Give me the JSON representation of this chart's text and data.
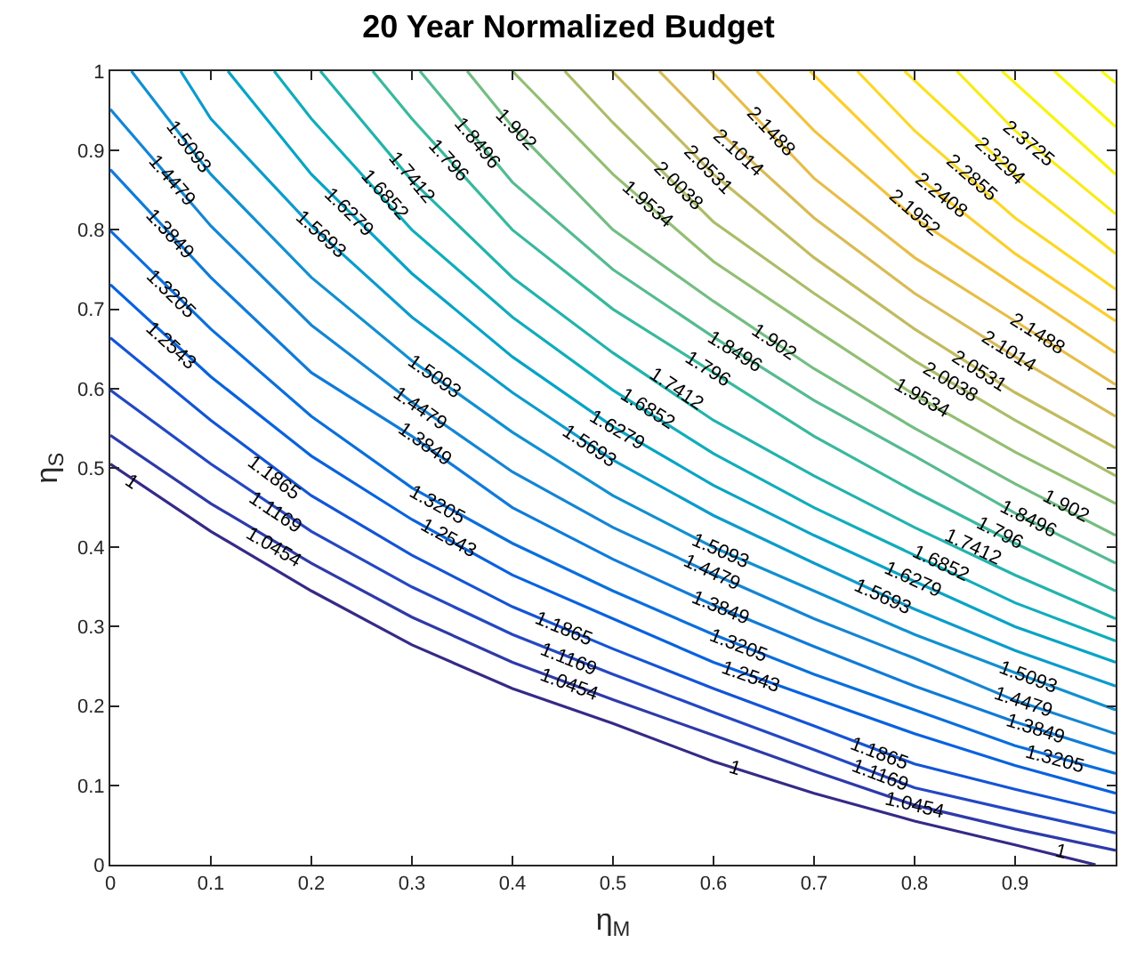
{
  "chart_data": {
    "type": "line",
    "title": "20 Year Normalized Budget",
    "xlabel": "η$_{M}$",
    "ylabel": "η$_{S}$",
    "xlim": [
      0,
      1
    ],
    "xticks": [
      0,
      0.1,
      0.2,
      0.3,
      0.4,
      0.5,
      0.6,
      0.7,
      0.8,
      0.9
    ],
    "ylim": [
      0,
      1
    ],
    "yticks": [
      0,
      0.1,
      0.2,
      0.3,
      0.4,
      0.5,
      0.6,
      0.7,
      0.8,
      0.9,
      1
    ],
    "grid": false,
    "series": [
      {
        "color": "#352a87",
        "x": [
          0,
          0.1,
          0.2,
          0.3,
          0.4,
          0.5,
          0.6,
          0.7,
          0.8,
          0.9,
          0.98
        ],
        "values": [
          0.505,
          0.42,
          0.345,
          0.277,
          0.222,
          0.178,
          0.13,
          0.09,
          0.055,
          0.025,
          0
        ]
      },
      {
        "color": "#2e3aa8",
        "x": [
          0,
          0.1,
          0.2,
          0.3,
          0.4,
          0.5,
          0.6,
          0.7,
          0.8,
          0.9,
          1
        ],
        "values": [
          0.541,
          0.455,
          0.38,
          0.312,
          0.255,
          0.208,
          0.163,
          0.118,
          0.075,
          0.045,
          0.018
        ]
      },
      {
        "color": "#2447c3",
        "x": [
          0,
          0.1,
          0.2,
          0.3,
          0.4,
          0.5,
          0.6,
          0.7,
          0.8,
          0.9,
          1
        ],
        "values": [
          0.598,
          0.505,
          0.42,
          0.35,
          0.29,
          0.24,
          0.192,
          0.145,
          0.097,
          0.068,
          0.04
        ]
      },
      {
        "color": "#1454d6",
        "x": [
          0,
          0.1,
          0.2,
          0.3,
          0.4,
          0.5,
          0.6,
          0.7,
          0.8,
          0.9,
          1
        ],
        "values": [
          0.664,
          0.56,
          0.465,
          0.39,
          0.325,
          0.272,
          0.222,
          0.175,
          0.127,
          0.095,
          0.065
        ]
      },
      {
        "color": "#0862df",
        "x": [
          0,
          0.1,
          0.2,
          0.3,
          0.4,
          0.5,
          0.6,
          0.7,
          0.8,
          0.9,
          1
        ],
        "values": [
          0.731,
          0.615,
          0.515,
          0.435,
          0.365,
          0.31,
          0.255,
          0.21,
          0.165,
          0.125,
          0.09
        ]
      },
      {
        "color": "#0a6fdc",
        "x": [
          0,
          0.1,
          0.2,
          0.3,
          0.4,
          0.5,
          0.6,
          0.7,
          0.8,
          0.9,
          1
        ],
        "values": [
          0.799,
          0.675,
          0.565,
          0.475,
          0.405,
          0.345,
          0.29,
          0.24,
          0.195,
          0.15,
          0.115
        ]
      },
      {
        "color": "#107bd8",
        "x": [
          0,
          0.1,
          0.2,
          0.3,
          0.4,
          0.5,
          0.6,
          0.7,
          0.8,
          0.9,
          1
        ],
        "values": [
          0.876,
          0.74,
          0.62,
          0.54,
          0.45,
          0.385,
          0.327,
          0.275,
          0.225,
          0.18,
          0.14
        ]
      },
      {
        "color": "#1485d4",
        "x": [
          0,
          0.1,
          0.2,
          0.3,
          0.4,
          0.5,
          0.6,
          0.7,
          0.8,
          0.9,
          1
        ],
        "values": [
          0.952,
          0.805,
          0.68,
          0.583,
          0.495,
          0.425,
          0.366,
          0.31,
          0.26,
          0.207,
          0.165
        ]
      },
      {
        "color": "#1190d0",
        "x": [
          0.021,
          0.1,
          0.2,
          0.3,
          0.4,
          0.5,
          0.6,
          0.7,
          0.8,
          0.9,
          1
        ],
        "values": [
          1,
          0.87,
          0.74,
          0.635,
          0.545,
          0.465,
          0.4,
          0.345,
          0.29,
          0.242,
          0.195
        ]
      },
      {
        "color": "#0c9bcc",
        "x": [
          0.07,
          0.1,
          0.2,
          0.3,
          0.4,
          0.5,
          0.6,
          0.7,
          0.8,
          0.9,
          1
        ],
        "values": [
          1,
          0.94,
          0.805,
          0.69,
          0.595,
          0.51,
          0.44,
          0.38,
          0.322,
          0.27,
          0.225
        ]
      },
      {
        "color": "#06a4c6",
        "x": [
          0.117,
          0.2,
          0.3,
          0.4,
          0.5,
          0.6,
          0.7,
          0.8,
          0.9,
          1
        ],
        "values": [
          1,
          0.87,
          0.745,
          0.64,
          0.552,
          0.478,
          0.415,
          0.357,
          0.3,
          0.255
        ]
      },
      {
        "color": "#10adbb",
        "x": [
          0.163,
          0.2,
          0.3,
          0.4,
          0.5,
          0.6,
          0.7,
          0.8,
          0.9,
          1
        ],
        "values": [
          1,
          0.94,
          0.8,
          0.69,
          0.598,
          0.518,
          0.45,
          0.39,
          0.33,
          0.282
        ]
      },
      {
        "color": "#22b3ad",
        "x": [
          0.209,
          0.3,
          0.4,
          0.5,
          0.6,
          0.7,
          0.8,
          0.9,
          1
        ],
        "values": [
          1,
          0.862,
          0.74,
          0.645,
          0.56,
          0.49,
          0.425,
          0.365,
          0.31
        ]
      },
      {
        "color": "#38b99e",
        "x": [
          0.261,
          0.3,
          0.4,
          0.5,
          0.6,
          0.7,
          0.8,
          0.9,
          1
        ],
        "values": [
          1,
          0.94,
          0.8,
          0.7,
          0.62,
          0.54,
          0.47,
          0.405,
          0.345
        ]
      },
      {
        "color": "#55bb91",
        "x": [
          0.308,
          0.4,
          0.5,
          0.6,
          0.7,
          0.8,
          0.9,
          1
        ],
        "values": [
          1,
          0.86,
          0.75,
          0.665,
          0.585,
          0.515,
          0.443,
          0.38
        ]
      },
      {
        "color": "#74bd82",
        "x": [
          0.355,
          0.4,
          0.5,
          0.6,
          0.7,
          0.8,
          0.9,
          1
        ],
        "values": [
          1,
          0.93,
          0.8,
          0.71,
          0.625,
          0.55,
          0.48,
          0.415
        ]
      },
      {
        "color": "#92bf73",
        "x": [
          0.4,
          0.5,
          0.6,
          0.7,
          0.8,
          0.9,
          1
        ],
        "values": [
          1,
          0.87,
          0.76,
          0.675,
          0.592,
          0.52,
          0.455
        ]
      },
      {
        "color": "#aabd69",
        "x": [
          0.452,
          0.5,
          0.6,
          0.7,
          0.8,
          0.9,
          1
        ],
        "values": [
          1,
          0.935,
          0.81,
          0.72,
          0.635,
          0.56,
          0.49
        ]
      },
      {
        "color": "#c2bb5f",
        "x": [
          0.499,
          0.6,
          0.7,
          0.8,
          0.9,
          1
        ],
        "values": [
          1,
          0.87,
          0.765,
          0.675,
          0.595,
          0.525
        ]
      },
      {
        "color": "#d9ba56",
        "x": [
          0.546,
          0.6,
          0.7,
          0.8,
          0.9,
          1
        ],
        "values": [
          1,
          0.93,
          0.815,
          0.72,
          0.64,
          0.565
        ]
      },
      {
        "color": "#e6bd48",
        "x": [
          0.598,
          0.7,
          0.8,
          0.9,
          1
        ],
        "values": [
          1,
          0.865,
          0.765,
          0.685,
          0.605
        ]
      },
      {
        "color": "#f1c33b",
        "x": [
          0.643,
          0.7,
          0.8,
          0.9,
          1
        ],
        "values": [
          1,
          0.925,
          0.815,
          0.73,
          0.645
        ]
      },
      {
        "color": "#fcce2e",
        "x": [
          0.696,
          0.8,
          0.9,
          1
        ],
        "values": [
          1,
          0.87,
          0.77,
          0.685
        ]
      },
      {
        "color": "#fbd827",
        "x": [
          0.743,
          0.8,
          0.9,
          1
        ],
        "values": [
          1,
          0.925,
          0.815,
          0.725
        ]
      },
      {
        "color": "#fae21f",
        "x": [
          0.79,
          0.9,
          1
        ],
        "values": [
          1,
          0.87,
          0.77
        ]
      },
      {
        "color": "#f9eb18",
        "x": [
          0.842,
          0.9,
          1
        ],
        "values": [
          1,
          0.925,
          0.82
        ]
      },
      {
        "color": "#f9f312",
        "x": [
          0.887,
          1
        ],
        "values": [
          1,
          0.87
        ]
      },
      {
        "color": "#f9f70f",
        "x": [
          0.939,
          1
        ],
        "values": [
          1,
          0.93
        ]
      },
      {
        "color": "#f9fb0e",
        "x": [
          0.986,
          1
        ],
        "values": [
          1,
          0.985
        ]
      }
    ],
    "annotations": [
      {
        "text": "1",
        "x": 0.021,
        "y": 0.483
      },
      {
        "text": "1",
        "x": 0.621,
        "y": 0.122
      },
      {
        "text": "1",
        "x": 0.946,
        "y": 0.015
      },
      {
        "text": "1.0454",
        "x": 0.163,
        "y": 0.4
      },
      {
        "text": "1.0454",
        "x": 0.456,
        "y": 0.227
      },
      {
        "text": "1.0454",
        "x": 0.8,
        "y": 0.073
      },
      {
        "text": "1.1169",
        "x": 0.163,
        "y": 0.443
      },
      {
        "text": "1.1169",
        "x": 0.456,
        "y": 0.258
      },
      {
        "text": "1.1169",
        "x": 0.765,
        "y": 0.111
      },
      {
        "text": "1.1865",
        "x": 0.163,
        "y": 0.487
      },
      {
        "text": "1.1865",
        "x": 0.452,
        "y": 0.297
      },
      {
        "text": "1.1865",
        "x": 0.765,
        "y": 0.138
      },
      {
        "text": "1.2543",
        "x": 0.061,
        "y": 0.653
      },
      {
        "text": "1.2543",
        "x": 0.337,
        "y": 0.41
      },
      {
        "text": "1.2543",
        "x": 0.638,
        "y": 0.236
      },
      {
        "text": "1.3205",
        "x": 0.061,
        "y": 0.718
      },
      {
        "text": "1.3205",
        "x": 0.325,
        "y": 0.454
      },
      {
        "text": "1.3205",
        "x": 0.624,
        "y": 0.275
      },
      {
        "text": "1.3205",
        "x": 0.939,
        "y": 0.133
      },
      {
        "text": "1.3849",
        "x": 0.059,
        "y": 0.793
      },
      {
        "text": "1.3849",
        "x": 0.313,
        "y": 0.53
      },
      {
        "text": "1.3849",
        "x": 0.607,
        "y": 0.323
      },
      {
        "text": "1.3849",
        "x": 0.92,
        "y": 0.17
      },
      {
        "text": "1.4479",
        "x": 0.061,
        "y": 0.86
      },
      {
        "text": "1.4479",
        "x": 0.308,
        "y": 0.574
      },
      {
        "text": "1.4479",
        "x": 0.598,
        "y": 0.367
      },
      {
        "text": "1.4479",
        "x": 0.908,
        "y": 0.203
      },
      {
        "text": "1.5093",
        "x": 0.078,
        "y": 0.904
      },
      {
        "text": "1.5093",
        "x": 0.322,
        "y": 0.614
      },
      {
        "text": "1.5093",
        "x": 0.607,
        "y": 0.395
      },
      {
        "text": "1.5093",
        "x": 0.913,
        "y": 0.236
      },
      {
        "text": "1.5693",
        "x": 0.209,
        "y": 0.793
      },
      {
        "text": "1.5693",
        "x": 0.476,
        "y": 0.526
      },
      {
        "text": "1.5693",
        "x": 0.769,
        "y": 0.336
      },
      {
        "text": "1.6279",
        "x": 0.238,
        "y": 0.821
      },
      {
        "text": "1.6279",
        "x": 0.504,
        "y": 0.548
      },
      {
        "text": "1.6279",
        "x": 0.798,
        "y": 0.358
      },
      {
        "text": "1.6852",
        "x": 0.273,
        "y": 0.843
      },
      {
        "text": "1.6852",
        "x": 0.534,
        "y": 0.574
      },
      {
        "text": "1.6852",
        "x": 0.826,
        "y": 0.38
      },
      {
        "text": "1.7412",
        "x": 0.299,
        "y": 0.865
      },
      {
        "text": "1.7412",
        "x": 0.563,
        "y": 0.598
      },
      {
        "text": "1.7412",
        "x": 0.859,
        "y": 0.4
      },
      {
        "text": "1.796",
        "x": 0.337,
        "y": 0.886
      },
      {
        "text": "1.796",
        "x": 0.595,
        "y": 0.624
      },
      {
        "text": "1.796",
        "x": 0.885,
        "y": 0.417
      },
      {
        "text": "1.8496",
        "x": 0.365,
        "y": 0.908
      },
      {
        "text": "1.8496",
        "x": 0.621,
        "y": 0.646
      },
      {
        "text": "1.8496",
        "x": 0.913,
        "y": 0.435
      },
      {
        "text": "1.902",
        "x": 0.403,
        "y": 0.926
      },
      {
        "text": "1.902",
        "x": 0.661,
        "y": 0.657
      },
      {
        "text": "1.902",
        "x": 0.951,
        "y": 0.45
      },
      {
        "text": "1.9534",
        "x": 0.534,
        "y": 0.832
      },
      {
        "text": "1.9534",
        "x": 0.807,
        "y": 0.587
      },
      {
        "text": "2.0038",
        "x": 0.565,
        "y": 0.854
      },
      {
        "text": "2.0038",
        "x": 0.835,
        "y": 0.607
      },
      {
        "text": "2.0531",
        "x": 0.595,
        "y": 0.875
      },
      {
        "text": "2.0531",
        "x": 0.864,
        "y": 0.62
      },
      {
        "text": "2.1014",
        "x": 0.624,
        "y": 0.897
      },
      {
        "text": "2.1014",
        "x": 0.894,
        "y": 0.646
      },
      {
        "text": "2.1488",
        "x": 0.656,
        "y": 0.923
      },
      {
        "text": "2.1488",
        "x": 0.922,
        "y": 0.668
      },
      {
        "text": "2.1952",
        "x": 0.8,
        "y": 0.821
      },
      {
        "text": "2.2408",
        "x": 0.826,
        "y": 0.843
      },
      {
        "text": "2.2855",
        "x": 0.856,
        "y": 0.865
      },
      {
        "text": "2.3294",
        "x": 0.885,
        "y": 0.886
      },
      {
        "text": "2.3725",
        "x": 0.913,
        "y": 0.908
      }
    ]
  }
}
